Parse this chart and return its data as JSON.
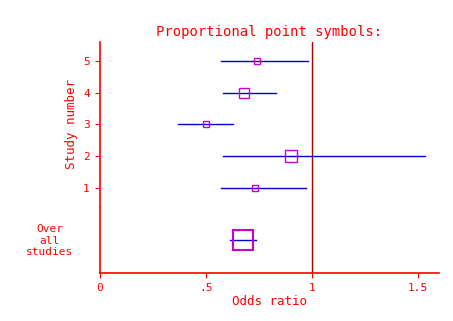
{
  "title": "Proportional point symbols:",
  "title_color": "#ff0000",
  "xlabel": "Odds ratio",
  "ylabel": "Study number",
  "xlabel_color": "#ff0000",
  "ylabel_color": "#ff0000",
  "axis_color": "#ff0000",
  "tick_color": "#ff0000",
  "xlim": [
    0,
    1.6
  ],
  "xticks": [
    0,
    0.5,
    1.0,
    1.5
  ],
  "xticklabels": [
    "0",
    ".5",
    "1",
    "1.5"
  ],
  "studies": [
    {
      "label": "1",
      "y": 1,
      "or": 0.73,
      "ci_low": 0.57,
      "ci_high": 0.97,
      "size": 5
    },
    {
      "label": "2",
      "y": 2,
      "or": 0.9,
      "ci_low": 0.58,
      "ci_high": 1.53,
      "size": 9
    },
    {
      "label": "3",
      "y": 3,
      "or": 0.5,
      "ci_low": 0.37,
      "ci_high": 0.63,
      "size": 5
    },
    {
      "label": "4",
      "y": 4,
      "or": 0.68,
      "ci_low": 0.58,
      "ci_high": 0.83,
      "size": 7
    },
    {
      "label": "5",
      "y": 5,
      "or": 0.74,
      "ci_low": 0.57,
      "ci_high": 0.98,
      "size": 5
    }
  ],
  "overall": {
    "y": 1,
    "or": 0.675,
    "ci_low": 0.615,
    "ci_high": 0.735,
    "size": 14
  },
  "ci_color": "#0000cc",
  "marker_color": "#cc00cc",
  "vline_x": 1.0,
  "vline_color": "#aa0000",
  "background_color": "#ffffff",
  "font_family": "monospace",
  "title_fontsize": 10,
  "label_fontsize": 9,
  "tick_fontsize": 8
}
